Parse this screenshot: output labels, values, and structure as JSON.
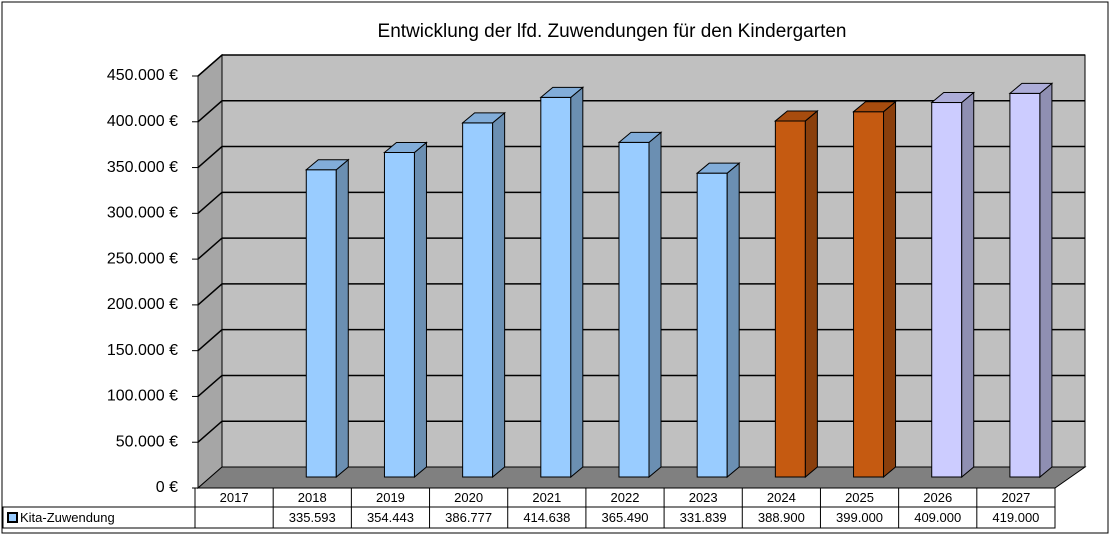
{
  "chart_data": {
    "type": "bar3d",
    "title": "Entwicklung der lfd. Zuwendungen für den Kindergarten",
    "categories": [
      "2017",
      "2018",
      "2019",
      "2020",
      "2021",
      "2022",
      "2023",
      "2024",
      "2025",
      "2026",
      "2027"
    ],
    "series": [
      {
        "name": "Kita-Zuwendung",
        "color": "#99ccff",
        "colors": [
          "#99ccff",
          "#99ccff",
          "#99ccff",
          "#99ccff",
          "#99ccff",
          "#99ccff",
          "#99ccff",
          "#c55a11",
          "#c55a11",
          "#ccccff",
          "#ccccff"
        ],
        "values": [
          null,
          335593,
          354443,
          386777,
          414638,
          365490,
          331839,
          388900,
          399000,
          409000,
          419000
        ],
        "value_labels": [
          null,
          "335.593",
          "354.443",
          "386.777",
          "414.638",
          "365.490",
          "331.839",
          "388.900",
          "399.000",
          "409.000",
          "419.000"
        ]
      }
    ],
    "ylim": [
      0,
      450000
    ],
    "yticks": [
      {
        "value": 0,
        "label": "0 €"
      },
      {
        "value": 50000,
        "label": "50.000 €"
      },
      {
        "value": 100000,
        "label": "100.000 €"
      },
      {
        "value": 150000,
        "label": "150.000 €"
      },
      {
        "value": 200000,
        "label": "200.000 €"
      },
      {
        "value": 250000,
        "label": "250.000 €"
      },
      {
        "value": 300000,
        "label": "300.000 €"
      },
      {
        "value": 350000,
        "label": "350.000 €"
      },
      {
        "value": 400000,
        "label": "400.000 €"
      },
      {
        "value": 450000,
        "label": "450.000 €"
      }
    ],
    "grid": true
  }
}
